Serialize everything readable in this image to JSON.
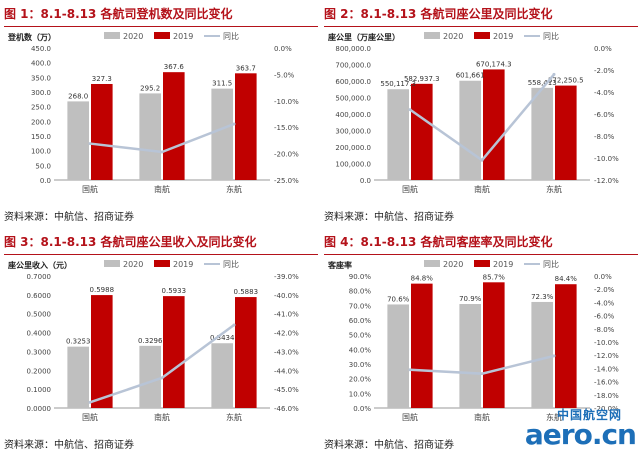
{
  "colors": {
    "c2020": "#bfbfbf",
    "c2019": "#c00000",
    "cyoy": "#b8c4d6",
    "title": "#b4121a"
  },
  "panels": [
    {
      "title": "图 1：8.1-8.13 各航司登机数及同比变化",
      "source": "资料来源：中航信、招商证券"
    },
    {
      "title": "图 2：8.1-8.13 各航司座公里及同比变化",
      "source": "资料来源：中航信、招商证券"
    },
    {
      "title": "图 3：8.1-8.13 各航司座公里收入及同比变化",
      "source": "资料来源：中航信、招商证券"
    },
    {
      "title": "图 4：8.1-8.13 各航司客座率及同比变化",
      "source": "资料来源：中航信、招商证券"
    }
  ],
  "watermark": {
    "cn": "中国航空网",
    "en": "aero.cn"
  },
  "chart_data": [
    {
      "type": "bar",
      "ylabel": "登机数（万）",
      "categories": [
        "国航",
        "南航",
        "东航"
      ],
      "series": [
        {
          "name": "2020",
          "values": [
            268.0,
            295.2,
            311.5
          ],
          "labels": [
            "268.0",
            "295.2",
            "311.5"
          ]
        },
        {
          "name": "2019",
          "values": [
            327.3,
            367.6,
            363.7
          ],
          "labels": [
            "327.3",
            "367.6",
            "363.7"
          ]
        },
        {
          "name": "同比",
          "type": "line",
          "axis": "right",
          "values": [
            -18.1,
            -19.7,
            -14.4
          ]
        }
      ],
      "ylim": [
        0,
        450
      ],
      "yticks": [
        0,
        50,
        100,
        150,
        200,
        250,
        300,
        350,
        400,
        450
      ],
      "yticklabels": [
        "0.0",
        "50.0",
        "100.0",
        "150.0",
        "200.0",
        "250.0",
        "300.0",
        "350.0",
        "400.0",
        "450.0"
      ],
      "y2lim": [
        -25,
        0
      ],
      "y2ticks": [
        0,
        -5,
        -10,
        -15,
        -20,
        -25
      ],
      "y2ticklabels": [
        "0.0%",
        "-5.0%",
        "-10.0%",
        "-15.0%",
        "-20.0%",
        "-25.0%"
      ],
      "legend": "top"
    },
    {
      "type": "bar",
      "ylabel": "座公里（万座公里）",
      "categories": [
        "国航",
        "南航",
        "东航"
      ],
      "series": [
        {
          "name": "2020",
          "values": [
            550117.3,
            601661,
            558413
          ],
          "labels": [
            "550,117.3",
            "601,661",
            "558,413"
          ]
        },
        {
          "name": "2019",
          "values": [
            582937.3,
            670174.3,
            572250.5
          ],
          "labels": [
            "582,937.3",
            "670,174.3",
            "572,250.5"
          ]
        },
        {
          "name": "同比",
          "type": "line",
          "axis": "right",
          "values": [
            -5.6,
            -10.2,
            -2.4
          ]
        }
      ],
      "ylim": [
        0,
        800000
      ],
      "yticks": [
        0,
        100000,
        200000,
        300000,
        400000,
        500000,
        600000,
        700000,
        800000
      ],
      "yticklabels": [
        "0.0",
        "100,000.0",
        "200,000.0",
        "300,000.0",
        "400,000.0",
        "500,000.0",
        "600,000.0",
        "700,000.0",
        "800,000.0"
      ],
      "y2lim": [
        -12,
        0
      ],
      "y2ticks": [
        0,
        -2,
        -4,
        -6,
        -8,
        -10,
        -12
      ],
      "y2ticklabels": [
        "0.0%",
        "-2.0%",
        "-4.0%",
        "-6.0%",
        "-8.0%",
        "-10.0%",
        "-12.0%"
      ],
      "legend": "top"
    },
    {
      "type": "bar",
      "ylabel": "座公里收入（元）",
      "categories": [
        "国航",
        "南航",
        "东航"
      ],
      "series": [
        {
          "name": "2020",
          "values": [
            0.3253,
            0.3296,
            0.3434
          ],
          "labels": [
            "0.3253",
            "0.3296",
            "0.3434"
          ]
        },
        {
          "name": "2019",
          "values": [
            0.5988,
            0.5933,
            0.5883
          ],
          "labels": [
            "0.5988",
            "0.5933",
            "0.5883"
          ]
        },
        {
          "name": "同比",
          "type": "line",
          "axis": "right",
          "values": [
            -45.7,
            -44.4,
            -41.6
          ]
        }
      ],
      "ylim": [
        0,
        0.7
      ],
      "yticks": [
        0,
        0.1,
        0.2,
        0.3,
        0.4,
        0.5,
        0.6,
        0.7
      ],
      "yticklabels": [
        "0.0000",
        "0.1000",
        "0.2000",
        "0.3000",
        "0.4000",
        "0.5000",
        "0.6000",
        "0.7000"
      ],
      "y2lim": [
        -46,
        -39
      ],
      "y2ticks": [
        -39,
        -40,
        -41,
        -42,
        -43,
        -44,
        -45,
        -46
      ],
      "y2ticklabels": [
        "-39.0%",
        "-40.0%",
        "-41.0%",
        "-42.0%",
        "-43.0%",
        "-44.0%",
        "-45.0%",
        "-46.0%"
      ],
      "legend": "top"
    },
    {
      "type": "bar",
      "ylabel": "客座率",
      "categories": [
        "国航",
        "南航",
        "东航"
      ],
      "series": [
        {
          "name": "2020",
          "values": [
            70.6,
            70.9,
            72.3
          ],
          "labels": [
            "70.6%",
            "70.9%",
            "72.3%"
          ]
        },
        {
          "name": "2019",
          "values": [
            84.8,
            85.7,
            84.4
          ],
          "labels": [
            "84.8%",
            "85.7%",
            "84.4%"
          ]
        },
        {
          "name": "同比",
          "type": "line",
          "axis": "right",
          "values": [
            -14.2,
            -14.8,
            -12.1
          ]
        }
      ],
      "ylim": [
        0,
        90
      ],
      "yticks": [
        0,
        10,
        20,
        30,
        40,
        50,
        60,
        70,
        80,
        90
      ],
      "yticklabels": [
        "0.0%",
        "10.0%",
        "20.0%",
        "30.0%",
        "40.0%",
        "50.0%",
        "60.0%",
        "70.0%",
        "80.0%",
        "90.0%"
      ],
      "y2lim": [
        -20,
        0
      ],
      "y2ticks": [
        0,
        -2,
        -4,
        -6,
        -8,
        -10,
        -12,
        -14,
        -16,
        -18,
        -20
      ],
      "y2ticklabels": [
        "0.0%",
        "-2.0%",
        "-4.0%",
        "-6.0%",
        "-8.0%",
        "-10.0%",
        "-12.0%",
        "-14.0%",
        "-16.0%",
        "-18.0%",
        "-20.0%"
      ],
      "legend": "top"
    }
  ]
}
